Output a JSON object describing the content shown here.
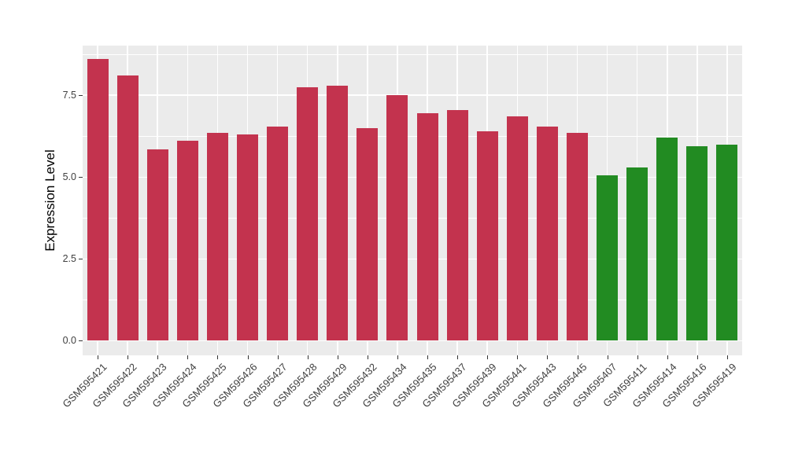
{
  "chart_data": {
    "type": "bar",
    "ylabel": "Expression Level",
    "categories": [
      "GSM595421",
      "GSM595422",
      "GSM595423",
      "GSM595424",
      "GSM595425",
      "GSM595426",
      "GSM595427",
      "GSM595428",
      "GSM595429",
      "GSM595432",
      "GSM595434",
      "GSM595435",
      "GSM595437",
      "GSM595439",
      "GSM595441",
      "GSM595443",
      "GSM595445",
      "GSM595407",
      "GSM595411",
      "GSM595414",
      "GSM595416",
      "GSM595419"
    ],
    "values": [
      8.6,
      8.1,
      5.85,
      6.1,
      6.35,
      6.3,
      6.55,
      7.75,
      7.8,
      6.5,
      7.5,
      6.95,
      7.05,
      6.4,
      6.85,
      6.55,
      6.35,
      5.05,
      5.3,
      6.2,
      5.95,
      6.0
    ],
    "bar_colors": [
      "#C3334E",
      "#C3334E",
      "#C3334E",
      "#C3334E",
      "#C3334E",
      "#C3334E",
      "#C3334E",
      "#C3334E",
      "#C3334E",
      "#C3334E",
      "#C3334E",
      "#C3334E",
      "#C3334E",
      "#C3334E",
      "#C3334E",
      "#C3334E",
      "#C3334E",
      "#228B22",
      "#228B22",
      "#228B22",
      "#228B22",
      "#228B22"
    ],
    "palette": {
      "red_group": "#C3334E",
      "green_group": "#228B22"
    },
    "yticks": {
      "values": [
        0,
        2.5,
        5,
        7.5
      ],
      "labels": [
        "0.0",
        "2.5",
        "5.0",
        "7.5"
      ]
    },
    "minor_yticks": [
      1.25,
      3.75,
      6.25,
      8.75
    ],
    "ylim": [
      -0.45,
      9.02
    ],
    "grid": true,
    "legend_position": "none",
    "panel_bg": "#EBEBEB",
    "grid_color": "#FFFFFF",
    "tick_color": "#333333",
    "tick_text_color": "#404040"
  }
}
